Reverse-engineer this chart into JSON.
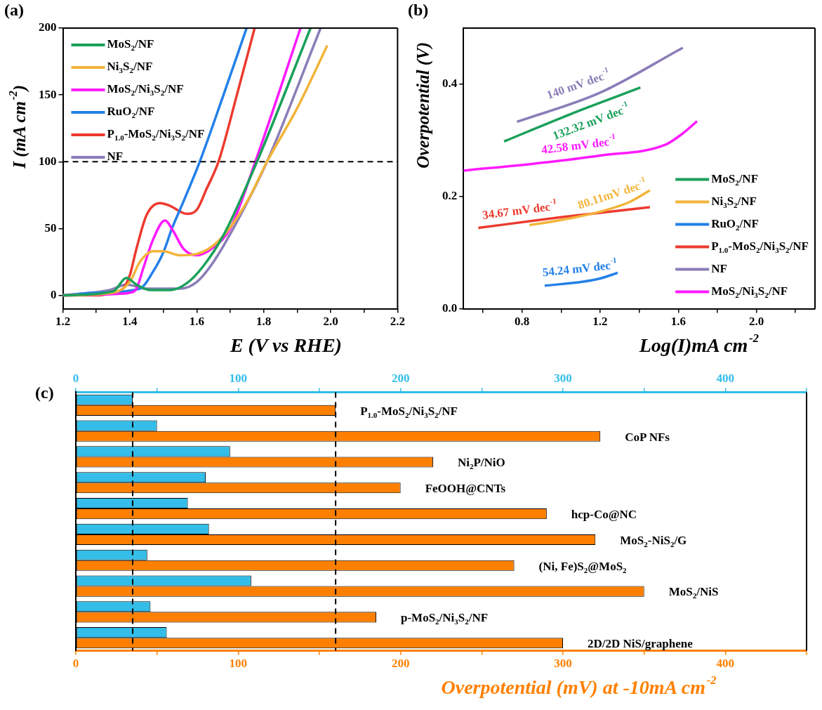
{
  "chart_data": [
    {
      "type": "line",
      "title": "(a)",
      "xlabel": "E (V vs RHE)",
      "ylabel": "I (mA cm$^{-2}$)",
      "xlim": [
        1.2,
        2.2
      ],
      "ylim": [
        -10,
        200
      ],
      "xticks": [
        1.2,
        {
          "value": 1.3,
          "label": null
        },
        1.4,
        {
          "value": 1.5,
          "label": null
        },
        1.6,
        {
          "value": 1.7,
          "label": null
        },
        1.8,
        {
          "value": 1.9,
          "label": null
        },
        {
          "value": 2.0,
          "label": "2.0"
        },
        {
          "value": 2.1,
          "label": null
        },
        2.2
      ],
      "yticks": [
        0,
        50,
        100,
        150,
        200
      ],
      "grid": false,
      "legend": "top left",
      "ref_lines": [
        {
          "axis": "y",
          "value": 100,
          "color": "#000000",
          "line_style": "dashed"
        }
      ],
      "series": [
        {
          "name": "MoS$_{2}$/NF",
          "color": "#1aa05a",
          "x": [
            1.2,
            1.35,
            1.39,
            1.42,
            1.46,
            1.52,
            1.57,
            1.62,
            1.68,
            1.78,
            1.94
          ],
          "values": [
            0,
            3,
            13,
            8,
            4,
            4,
            9,
            22,
            45,
            100,
            200
          ]
        },
        {
          "name": "Ni$_{3}$S$_{2}$/NF",
          "color": "#f2b43a",
          "x": [
            1.2,
            1.35,
            1.4,
            1.43,
            1.47,
            1.5,
            1.55,
            1.6,
            1.67,
            1.75,
            1.81,
            1.9,
            1.99
          ],
          "values": [
            0,
            2,
            10,
            25,
            33,
            33,
            30,
            31,
            42,
            70,
            100,
            140,
            187
          ]
        },
        {
          "name": "MoS$_{2}$/Ni$_{3}$S$_{2}$/NF",
          "color": "#ff1aff",
          "x": [
            1.2,
            1.35,
            1.4,
            1.42,
            1.44,
            1.47,
            1.505,
            1.53,
            1.56,
            1.6,
            1.65,
            1.7,
            1.775,
            1.91
          ],
          "values": [
            0,
            1,
            2,
            5,
            20,
            42,
            56,
            48,
            35,
            30,
            36,
            50,
            100,
            200
          ]
        },
        {
          "name": "RuO$_{2}$/NF",
          "color": "#2380e8",
          "x": [
            1.2,
            1.3,
            1.43,
            1.47,
            1.5,
            1.526,
            1.56,
            1.609,
            1.68,
            1.749
          ],
          "values": [
            0,
            2,
            5,
            18,
            32,
            50,
            70,
            100,
            150,
            200
          ]
        },
        {
          "name": "P$_{1.0}$-MoS$_{2}$/Ni$_{3}$S$_{2}$/NF",
          "color": "#ec3a2e",
          "x": [
            1.2,
            1.3,
            1.35,
            1.38,
            1.4,
            1.42,
            1.45,
            1.49,
            1.52,
            1.57,
            1.6,
            1.63,
            1.665,
            1.72,
            1.773
          ],
          "values": [
            0,
            0,
            2,
            5,
            15,
            35,
            60,
            69,
            67,
            61,
            64,
            80,
            100,
            150,
            200
          ]
        },
        {
          "name": "NF",
          "color": "#8b7db8",
          "x": [
            1.2,
            1.34,
            1.39,
            1.45,
            1.55,
            1.6,
            1.65,
            1.72,
            1.81,
            1.97
          ],
          "values": [
            0,
            4,
            8,
            5,
            5,
            10,
            25,
            55,
            100,
            200
          ]
        }
      ]
    },
    {
      "type": "line",
      "title": "(b)",
      "xlabel": "Log(I)mA cm$^{-2}$",
      "ylabel": "Overpotential (V)",
      "xlim": [
        0.5,
        2.3
      ],
      "ylim": [
        0,
        0.5
      ],
      "xticks": [
        {
          "value": 0.6,
          "label": null
        },
        0.8,
        {
          "value": 1.0,
          "label": null
        },
        1.2,
        {
          "value": 1.4,
          "label": null
        },
        1.6,
        {
          "value": 1.8,
          "label": null
        },
        {
          "value": 2.0,
          "label": "2.0"
        },
        {
          "value": 2.2,
          "label": null
        }
      ],
      "yticks": [
        {
          "value": 0,
          "label": "0.0"
        },
        0.2,
        0.4
      ],
      "grid": false,
      "legend": "bottom right",
      "annotations": [
        "132.32 mV dec$^{-1}$",
        "80.11mV dec$^{-1}$",
        "54.24 mV dec$^{-1}$",
        "34.67 mV dec$^{-1}$",
        "140 mV dec$^{-1}$",
        "42.58 mV dec$^{-1}$"
      ],
      "series": [
        {
          "name": "MoS$_{2}$/NF",
          "color": "#1aa05a",
          "x": [
            0.708,
            1.05,
            1.406
          ],
          "values": [
            0.298,
            0.347,
            0.394
          ]
        },
        {
          "name": "Ni$_{3}$S$_{2}$/NF",
          "color": "#f2b43a",
          "x": [
            0.838,
            1.0,
            1.2,
            1.35,
            1.455
          ],
          "values": [
            0.149,
            0.158,
            0.173,
            0.19,
            0.211
          ]
        },
        {
          "name": "RuO$_{2}$/NF",
          "color": "#2380e8",
          "x": [
            0.916,
            1.108,
            1.2,
            1.29
          ],
          "values": [
            0.041,
            0.048,
            0.054,
            0.064
          ]
        },
        {
          "name": "P$_{1.0}$-MoS$_{2}$/Ni$_{3}$S$_{2}$/NF",
          "color": "#ec3a2e",
          "x": [
            0.576,
            1.0,
            1.455
          ],
          "values": [
            0.144,
            0.163,
            0.181
          ]
        },
        {
          "name": "NF",
          "color": "#8b7db8",
          "x": [
            0.774,
            1.2,
            1.623
          ],
          "values": [
            0.333,
            0.385,
            0.465
          ]
        },
        {
          "name": "MoS$_{2}$/Ni$_{3}$S$_{2}$/NF",
          "color": "#ff1aff",
          "x": [
            0.5,
            0.9,
            1.2,
            1.533,
            1.618,
            1.696
          ],
          "values": [
            0.246,
            0.26,
            0.273,
            0.292,
            0.311,
            0.334
          ]
        }
      ]
    },
    {
      "type": "bar",
      "orientation": "horizontal",
      "title": "(c)",
      "xlabel": "Overpotential (mV) at -10mA cm$^{-2}$",
      "categories": [
        "P$_{1.0}$-MoS$_{2}$/Ni$_{3}$S$_{2}$/NF",
        "CoP NFs",
        "Ni$_{2}$P/NiO",
        "FeOOH@CNTs",
        "hcp-Co@NC",
        "MoS$_{2}$-NiS$_{2}$/G",
        "(Ni, Fe)S$_{2}$@MoS$_{2}$",
        "MoS$_{2}$/NiS",
        "p-MoS$_{2}$/Ni$_{3}$S$_{2}$/NF",
        "2D/2D NiS/graphene"
      ],
      "xlim": [
        0,
        450
      ],
      "xticks": [
        0,
        {
          "value": 50,
          "label": null
        },
        100,
        {
          "value": 150,
          "label": null
        },
        200,
        {
          "value": 250,
          "label": null
        },
        300,
        {
          "value": 350,
          "label": null
        },
        400,
        {
          "value": 450,
          "label": null
        }
      ],
      "x2lim": [
        0,
        450
      ],
      "x2ticks": [
        0,
        {
          "value": 50,
          "label": null
        },
        100,
        {
          "value": 150,
          "label": null
        },
        200,
        {
          "value": 250,
          "label": null
        },
        300,
        {
          "value": 350,
          "label": null
        },
        400,
        {
          "value": 450,
          "label": null
        }
      ],
      "grid": false,
      "legend": false,
      "ref_lines": [
        {
          "axis": "x",
          "value": 35,
          "color": "#000000",
          "line_style": "dashed"
        },
        {
          "axis": "x",
          "value": 160,
          "color": "#000000",
          "line_style": "dashed"
        }
      ],
      "series": [
        {
          "color": "#33bde8",
          "axis": "x2",
          "values": [
            35,
            50,
            95,
            80,
            69,
            82,
            44,
            108,
            46,
            56
          ]
        },
        {
          "color": "#ff8000",
          "values": [
            160,
            323,
            220,
            200,
            290,
            320,
            270,
            350,
            185,
            300
          ]
        }
      ]
    }
  ]
}
